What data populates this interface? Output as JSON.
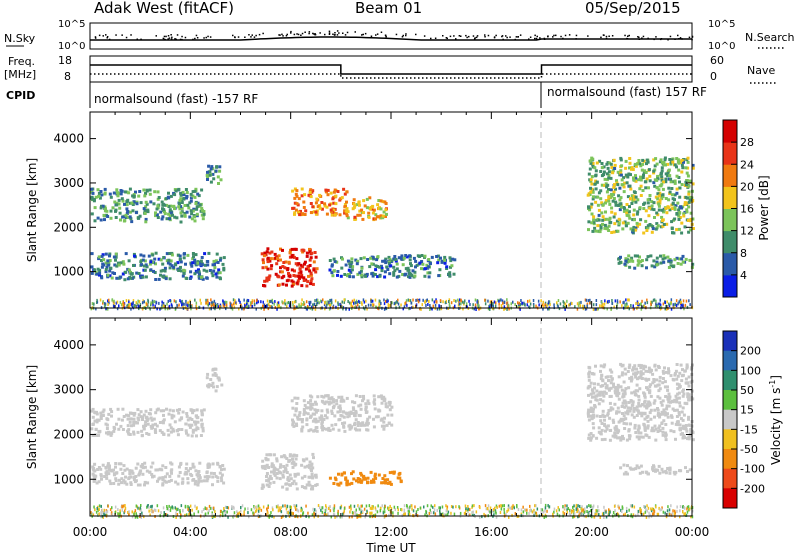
{
  "header": {
    "station": "Adak West (fitACF)",
    "beam": "Beam 01",
    "date": "05/Sep/2015"
  },
  "nsky_panel": {
    "left_label": "N.Sky",
    "left_ticks": [
      "10^5",
      "10^0"
    ],
    "right_label": "N.Search",
    "right_ticks": [
      "10^5",
      "10^0"
    ]
  },
  "freq_panel": {
    "left_label_1": "Freq.",
    "left_label_2": "[MHz]",
    "left_ticks": [
      "18",
      "8"
    ],
    "right_label": "Nave",
    "right_ticks": [
      "60",
      "0"
    ]
  },
  "cpid_panel": {
    "label": "CPID",
    "program_1": "normalsound (fast) -157 RF",
    "program_2": "normalsound (fast) 157 RF"
  },
  "x_axis": {
    "title": "Time UT",
    "ticks": [
      "00:00",
      "04:00",
      "08:00",
      "12:00",
      "16:00",
      "20:00",
      "00:00"
    ]
  },
  "power_colorbar": {
    "label": "Power [dB]",
    "ticks": [
      "4",
      "8",
      "12",
      "16",
      "20",
      "24",
      "28"
    ],
    "colors": [
      "#0a1ee6",
      "#2a5aa8",
      "#3f8c6a",
      "#7cc45a",
      "#f2c41c",
      "#f07a10",
      "#e83418",
      "#d40000"
    ]
  },
  "velocity_colorbar": {
    "label": "Velocity [m s^-1]",
    "ticks": [
      "200",
      "100",
      "50",
      "15",
      "-15",
      "-50",
      "-100",
      "-200"
    ],
    "colors": [
      "#1a30b8",
      "#2a6ab0",
      "#2f8f6e",
      "#5cbf3e",
      "#c8c8c8",
      "#f0c020",
      "#f08a10",
      "#ee4a1a",
      "#d80000"
    ]
  },
  "chart_data": [
    {
      "type": "heatmap",
      "title": "Power",
      "ylabel": "Slant Range [km]",
      "xlabel": "Time UT",
      "xlim": [
        0,
        24
      ],
      "ylim": [
        180,
        4600
      ],
      "yticks": [
        1000,
        2000,
        3000,
        4000
      ],
      "colorbar": {
        "label": "Power [dB]",
        "range": [
          0,
          30
        ]
      },
      "echo_regions": [
        {
          "t0": 0.0,
          "t1": 4.5,
          "r0": 2150,
          "r1": 2900,
          "level": 10
        },
        {
          "t0": 4.6,
          "t1": 5.2,
          "r0": 3000,
          "r1": 3500,
          "level": 9
        },
        {
          "t0": 0.0,
          "t1": 5.3,
          "r0": 850,
          "r1": 1450,
          "level": 8
        },
        {
          "t0": 6.8,
          "t1": 9.0,
          "r0": 700,
          "r1": 1550,
          "level": 26
        },
        {
          "t0": 8.0,
          "t1": 10.2,
          "r0": 2300,
          "r1": 2900,
          "level": 20
        },
        {
          "t0": 10.0,
          "t1": 11.8,
          "r0": 2200,
          "r1": 2700,
          "level": 18
        },
        {
          "t0": 9.5,
          "t1": 14.5,
          "r0": 900,
          "r1": 1400,
          "level": 8
        },
        {
          "t0": 19.8,
          "t1": 24.0,
          "r0": 1900,
          "r1": 3600,
          "level": 12
        },
        {
          "t0": 21.0,
          "t1": 24.0,
          "r0": 1100,
          "r1": 1400,
          "level": 10
        }
      ],
      "ground_scatter_range": [
        180,
        400
      ]
    },
    {
      "type": "heatmap",
      "title": "Velocity",
      "ylabel": "Slant Range [km]",
      "xlabel": "Time UT",
      "xlim": [
        0,
        24
      ],
      "ylim": [
        180,
        4600
      ],
      "yticks": [
        1000,
        2000,
        3000,
        4000
      ],
      "colorbar": {
        "label": "Velocity [m s^-1]",
        "range": [
          -200,
          200
        ]
      },
      "echo_regions": [
        {
          "t0": 0.0,
          "t1": 4.5,
          "r0": 2000,
          "r1": 2600,
          "level": 0
        },
        {
          "t0": 4.6,
          "t1": 5.2,
          "r0": 3000,
          "r1": 3500,
          "level": 0
        },
        {
          "t0": 0.0,
          "t1": 5.3,
          "r0": 900,
          "r1": 1400,
          "level": 0
        },
        {
          "t0": 6.8,
          "t1": 9.0,
          "r0": 800,
          "r1": 1600,
          "level": 0
        },
        {
          "t0": 9.5,
          "t1": 12.5,
          "r0": 900,
          "r1": 1200,
          "level": -60
        },
        {
          "t0": 8.0,
          "t1": 12.0,
          "r0": 2100,
          "r1": 2900,
          "level": 0
        },
        {
          "t0": 19.8,
          "t1": 24.0,
          "r0": 1900,
          "r1": 3600,
          "level": 0
        },
        {
          "t0": 21.0,
          "t1": 24.0,
          "r0": 1150,
          "r1": 1350,
          "level": 0
        }
      ],
      "ground_scatter_range": [
        180,
        450
      ]
    }
  ]
}
